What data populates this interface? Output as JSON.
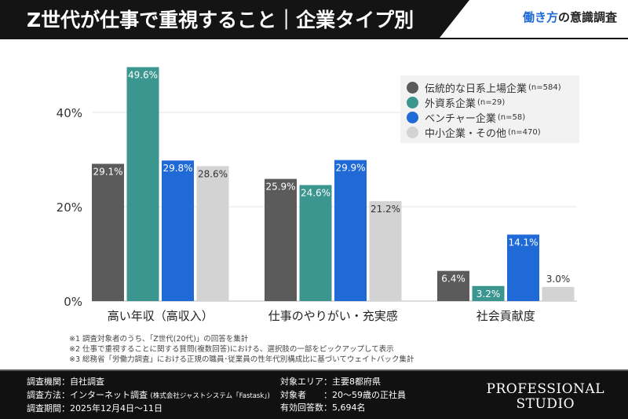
{
  "header": {
    "title": "Z世代が仕事で重視すること｜企業タイプ別",
    "brand_highlight": "働き方",
    "brand_rest": "の意識調査"
  },
  "chart_data": {
    "type": "bar",
    "categories": [
      "高い年収（高収入）",
      "仕事のやりがい・充実感",
      "社会貢献度"
    ],
    "yticks": [
      "0%",
      "20%",
      "40%"
    ],
    "ylim": [
      0,
      50
    ],
    "grid": true,
    "legend_position": "top-right",
    "series": [
      {
        "name": "伝統的な日系上場企業",
        "n": "(n=584)",
        "color": "#5b5b5b",
        "values": [
          29.1,
          25.9,
          6.4
        ],
        "labels": [
          "29.1%",
          "25.9%",
          "6.4%"
        ]
      },
      {
        "name": "外資系企業",
        "n": "(n=29)",
        "color": "#3b9690",
        "values": [
          49.6,
          24.6,
          3.2
        ],
        "labels": [
          "49.6%",
          "24.6%",
          "3.2%"
        ]
      },
      {
        "name": "ベンチャー企業",
        "n": "(n=58)",
        "color": "#1f6ad6",
        "values": [
          29.8,
          29.9,
          14.1
        ],
        "labels": [
          "29.8%",
          "29.9%",
          "14.1%"
        ]
      },
      {
        "name": "中小企業・その他",
        "n": "(n=470)",
        "color": "#d3d3d3",
        "values": [
          28.6,
          21.2,
          3.0
        ],
        "labels": [
          "28.6%",
          "21.2%",
          "3.0%"
        ]
      }
    ]
  },
  "notes": [
    "※1 調査対象者のうち、「Z世代(20代)」の回答を集計",
    "※2 仕事で重視することに関する質問(複数回答)における、選択肢の一部をピックアップして表示",
    "※3 総務省「労働力調査」における正規の職員･従業員の性年代別構成比に基づいてウェイトバック集計"
  ],
  "footer": {
    "left": [
      "調査機関：自社調査",
      "調査方法：インターネット調査",
      "調査期間：2025年12月4日〜11日"
    ],
    "method_note": "(株式会社ジャストシステム「Fastask」)",
    "right": [
      "対象エリア：主要8都府県",
      "対象者　　：20〜59歳の正社員",
      "有効回答数：5,694名"
    ],
    "logo": [
      "PROFESSIONAL",
      "STUDIO"
    ]
  }
}
